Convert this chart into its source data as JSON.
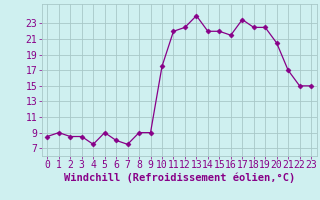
{
  "x": [
    0,
    1,
    2,
    3,
    4,
    5,
    6,
    7,
    8,
    9,
    10,
    11,
    12,
    13,
    14,
    15,
    16,
    17,
    18,
    19,
    20,
    21,
    22,
    23
  ],
  "y": [
    8.5,
    9.0,
    8.5,
    8.5,
    7.5,
    9.0,
    8.0,
    7.5,
    9.0,
    9.0,
    17.5,
    22.0,
    22.5,
    24.0,
    22.0,
    22.0,
    21.5,
    23.5,
    22.5,
    22.5,
    20.5,
    17.0,
    15.0,
    15.0
  ],
  "line_color": "#880088",
  "marker": "D",
  "marker_size": 2.5,
  "bg_color": "#cff0f0",
  "grid_color": "#a8c8c8",
  "xlabel": "Windchill (Refroidissement éolien,°C)",
  "xlabel_fontsize": 7.5,
  "yticks": [
    7,
    9,
    11,
    13,
    15,
    17,
    19,
    21,
    23
  ],
  "xticks": [
    0,
    1,
    2,
    3,
    4,
    5,
    6,
    7,
    8,
    9,
    10,
    11,
    12,
    13,
    14,
    15,
    16,
    17,
    18,
    19,
    20,
    21,
    22,
    23
  ],
  "ylim": [
    6.0,
    25.5
  ],
  "xlim": [
    -0.5,
    23.5
  ],
  "tick_fontsize": 7.0
}
